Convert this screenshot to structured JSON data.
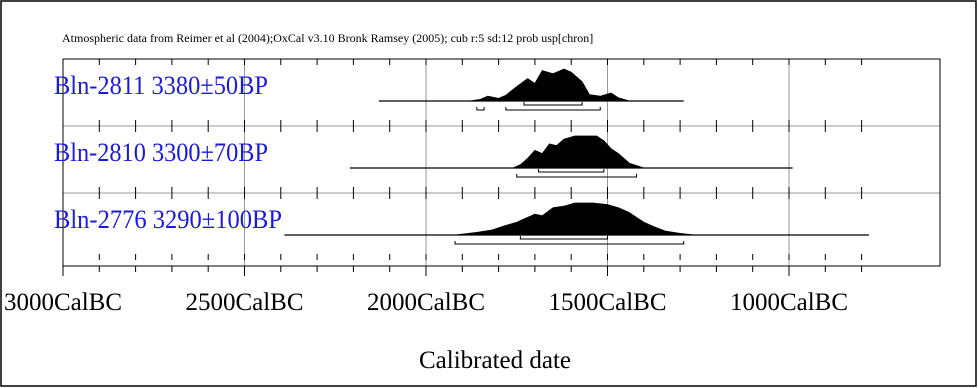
{
  "header_text": "Atmospheric data from Reimer et al (2004);OxCal v3.10 Bronk Ramsey (2005); cub r:5 sd:12 prob usp[chron]",
  "chart_data": {
    "type": "area",
    "title": "",
    "xlabel": "Calibrated date",
    "x_ticks": [
      {
        "value": -3000,
        "label": "3000CalBC"
      },
      {
        "value": -2500,
        "label": "2500CalBC"
      },
      {
        "value": -2000,
        "label": "2000CalBC"
      },
      {
        "value": -1500,
        "label": "1500CalBC"
      },
      {
        "value": -1000,
        "label": "1000CalBC"
      }
    ],
    "xlim": [
      -3000,
      -750
    ],
    "minor_tick_step": 100,
    "grid": true,
    "series": [
      {
        "name": "Bln-2811  3380±50BP",
        "line_range": [
          -2130,
          -1290
        ],
        "density": [
          [
            -1880,
            0
          ],
          [
            -1850,
            0.05
          ],
          [
            -1830,
            0.15
          ],
          [
            -1800,
            0.08
          ],
          [
            -1780,
            0.18
          ],
          [
            -1750,
            0.45
          ],
          [
            -1720,
            0.7
          ],
          [
            -1700,
            0.55
          ],
          [
            -1680,
            0.95
          ],
          [
            -1650,
            0.85
          ],
          [
            -1620,
            1.0
          ],
          [
            -1600,
            0.9
          ],
          [
            -1570,
            0.6
          ],
          [
            -1550,
            0.2
          ],
          [
            -1520,
            0.15
          ],
          [
            -1490,
            0.25
          ],
          [
            -1470,
            0.1
          ],
          [
            -1440,
            0
          ]
        ],
        "ranges_68": [
          [
            -1730,
            -1570
          ]
        ],
        "ranges_95": [
          [
            -1860,
            -1840
          ],
          [
            -1780,
            -1520
          ]
        ]
      },
      {
        "name": "Bln-2810  3300±70BP",
        "line_range": [
          -2210,
          -990
        ],
        "density": [
          [
            -1760,
            0
          ],
          [
            -1740,
            0.1
          ],
          [
            -1720,
            0.3
          ],
          [
            -1700,
            0.55
          ],
          [
            -1680,
            0.45
          ],
          [
            -1660,
            0.75
          ],
          [
            -1640,
            0.7
          ],
          [
            -1620,
            0.9
          ],
          [
            -1590,
            1.0
          ],
          [
            -1530,
            1.0
          ],
          [
            -1510,
            0.85
          ],
          [
            -1490,
            0.6
          ],
          [
            -1470,
            0.45
          ],
          [
            -1440,
            0.15
          ],
          [
            -1400,
            0
          ]
        ],
        "ranges_68": [
          [
            -1690,
            -1510
          ]
        ],
        "ranges_95": [
          [
            -1750,
            -1420
          ]
        ]
      },
      {
        "name": "Bln-2776  3290±100BP",
        "line_range": [
          -2390,
          -780
        ],
        "density": [
          [
            -1920,
            0
          ],
          [
            -1860,
            0.08
          ],
          [
            -1820,
            0.15
          ],
          [
            -1780,
            0.3
          ],
          [
            -1750,
            0.4
          ],
          [
            -1720,
            0.55
          ],
          [
            -1700,
            0.65
          ],
          [
            -1680,
            0.6
          ],
          [
            -1650,
            0.85
          ],
          [
            -1620,
            0.9
          ],
          [
            -1590,
            1.0
          ],
          [
            -1540,
            1.0
          ],
          [
            -1500,
            0.95
          ],
          [
            -1470,
            0.85
          ],
          [
            -1440,
            0.7
          ],
          [
            -1420,
            0.55
          ],
          [
            -1400,
            0.4
          ],
          [
            -1370,
            0.25
          ],
          [
            -1340,
            0.12
          ],
          [
            -1300,
            0.05
          ],
          [
            -1260,
            0
          ]
        ],
        "ranges_68": [
          [
            -1740,
            -1500
          ]
        ],
        "ranges_95": [
          [
            -1920,
            -1290
          ]
        ]
      }
    ]
  }
}
